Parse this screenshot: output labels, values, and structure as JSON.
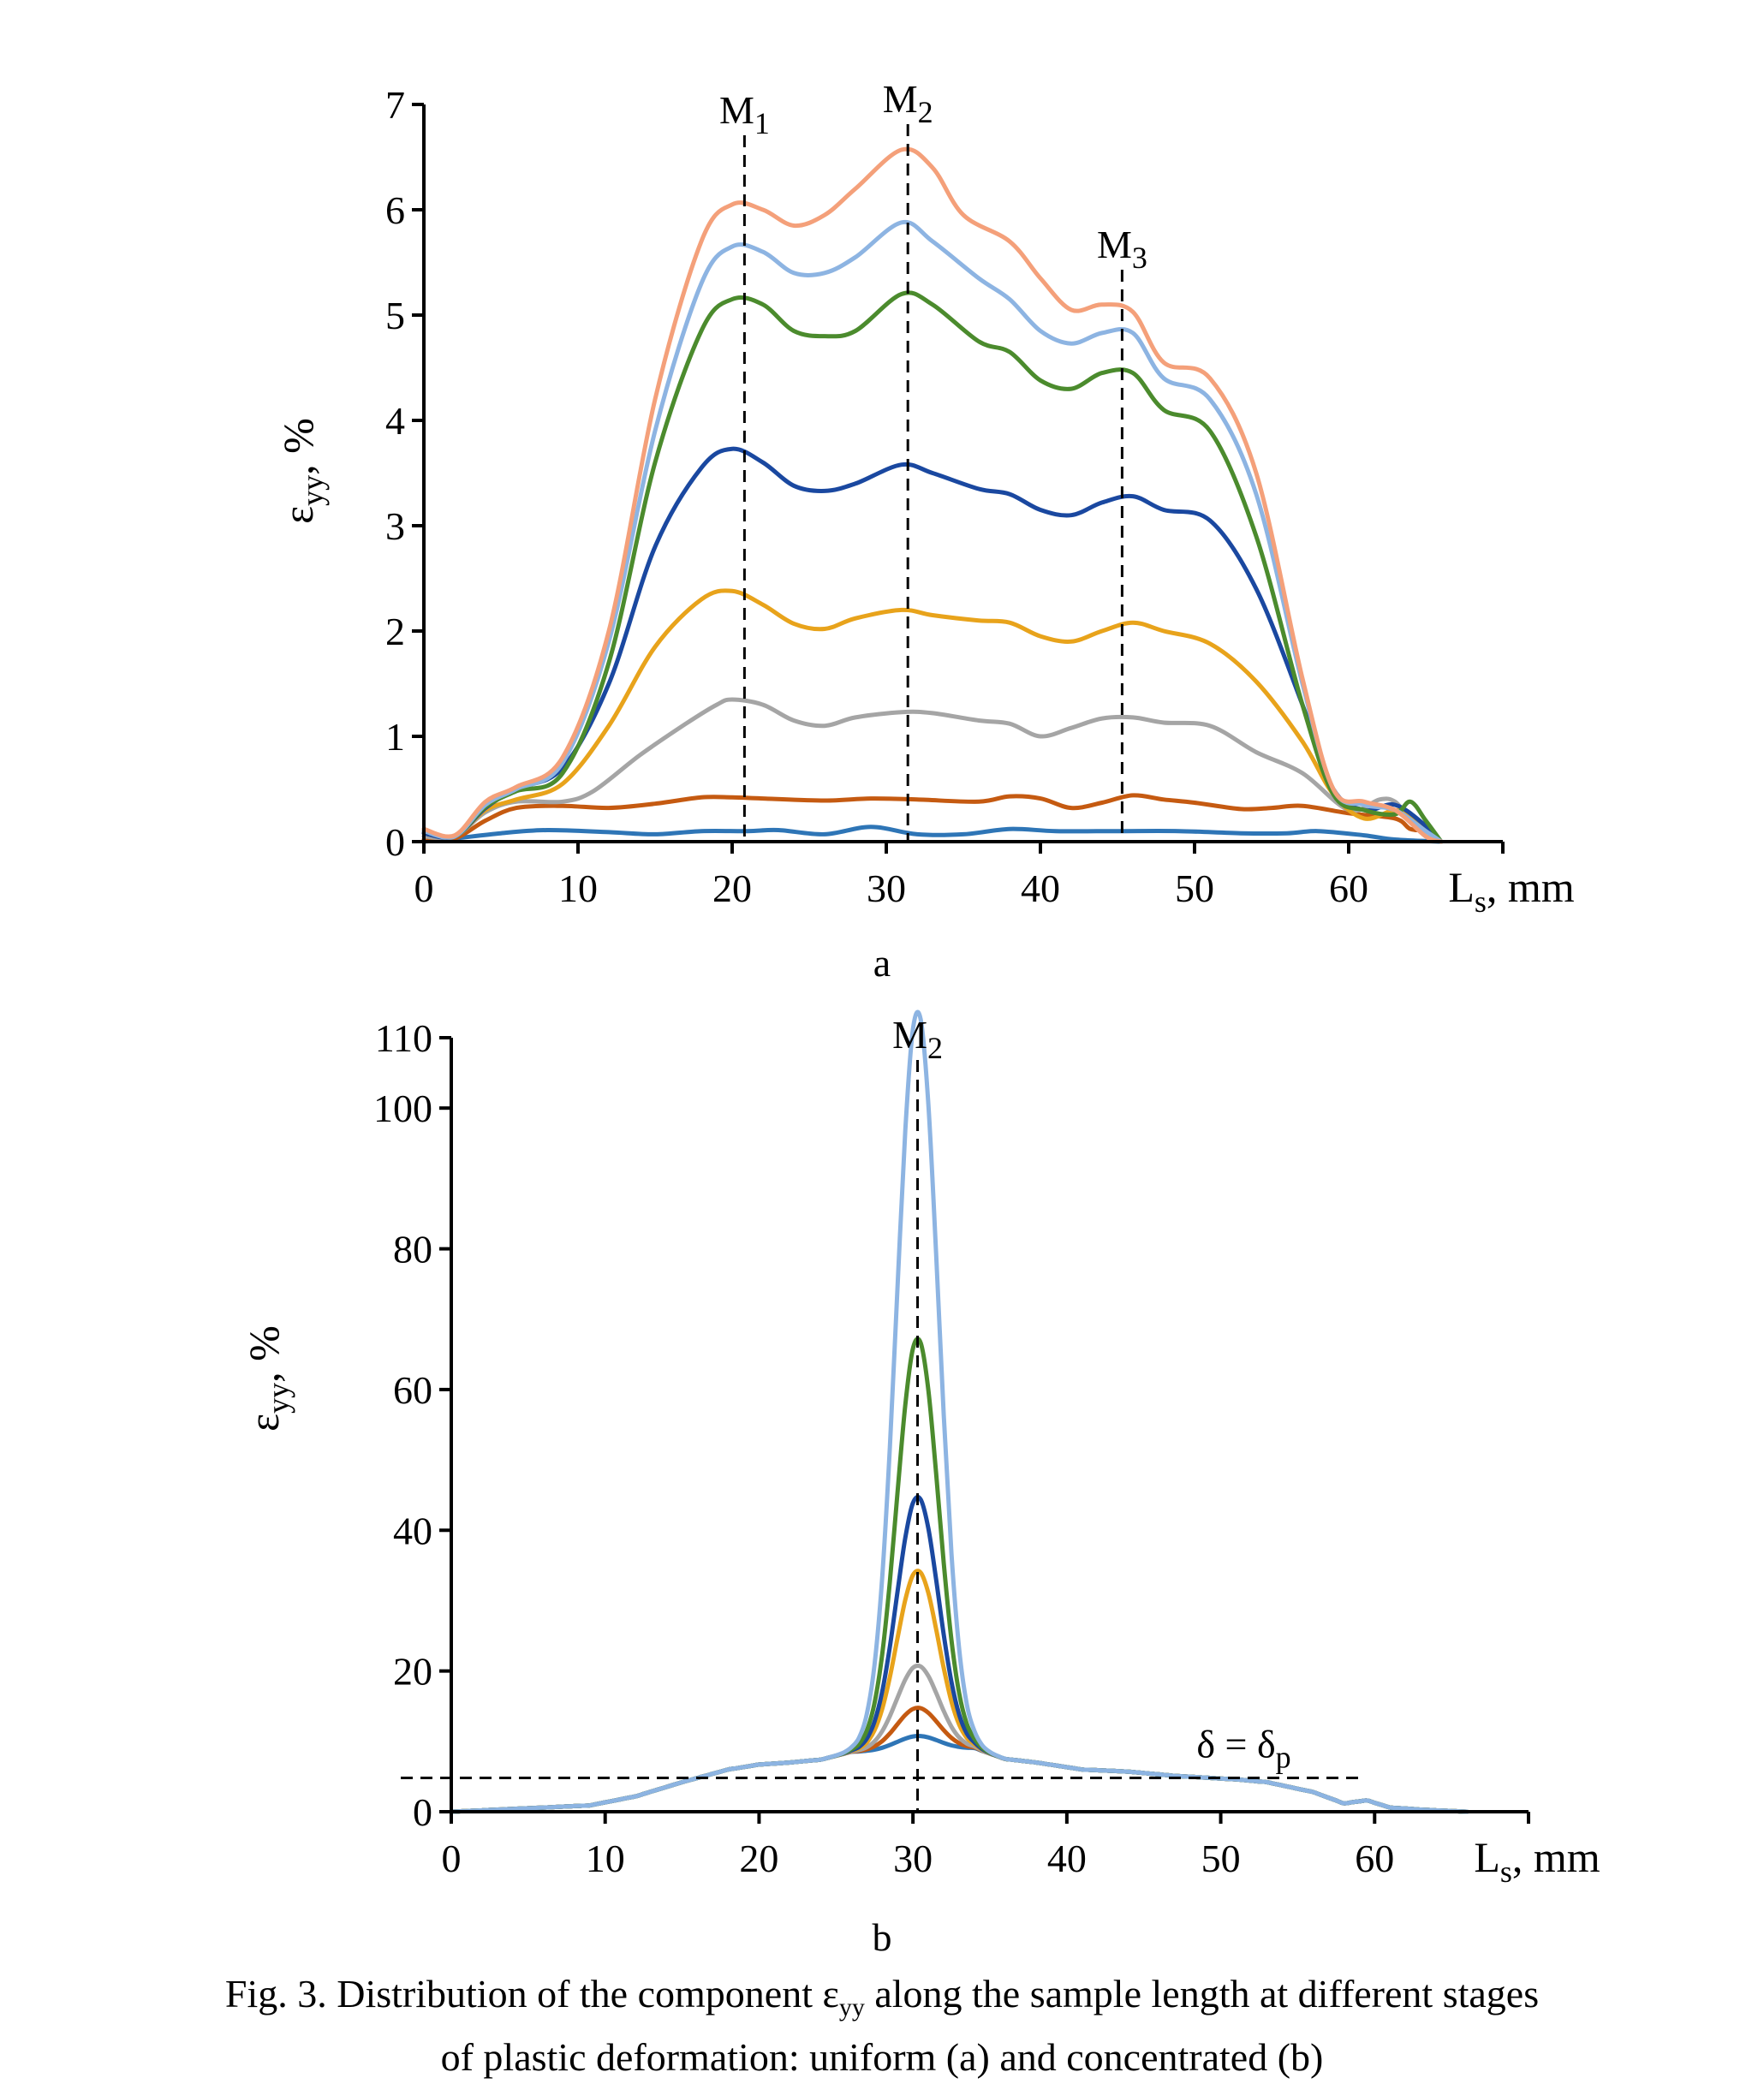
{
  "chart_data": [
    {
      "type": "line",
      "panel_label": "a",
      "ylabel": "εyy, %",
      "xlabel": "Ls, mm",
      "xlim": [
        0,
        70
      ],
      "ylim": [
        0,
        7
      ],
      "x_ticks": [
        "0",
        "10",
        "20",
        "30",
        "40",
        "50",
        "60"
      ],
      "y_ticks": [
        "0",
        "1",
        "2",
        "3",
        "4",
        "5",
        "6",
        "7"
      ],
      "markers": [
        {
          "label": "M1",
          "x": 20.8
        },
        {
          "label": "M2",
          "x": 31.4
        },
        {
          "label": "M3",
          "x": 45.3
        }
      ],
      "series": [
        {
          "color": "#2e75b6",
          "points": [
            [
              0,
              0
            ],
            [
              2,
              0.03
            ],
            [
              5,
              0.08
            ],
            [
              8,
              0.11
            ],
            [
              12,
              0.09
            ],
            [
              15,
              0.07
            ],
            [
              18,
              0.1
            ],
            [
              21,
              0.1
            ],
            [
              23,
              0.11
            ],
            [
              26,
              0.07
            ],
            [
              29,
              0.14
            ],
            [
              32,
              0.07
            ],
            [
              35,
              0.07
            ],
            [
              38,
              0.12
            ],
            [
              41,
              0.1
            ],
            [
              45,
              0.1
            ],
            [
              49,
              0.1
            ],
            [
              53,
              0.08
            ],
            [
              56,
              0.08
            ],
            [
              58,
              0.1
            ],
            [
              61,
              0.06
            ],
            [
              63,
              0.02
            ],
            [
              66,
              0
            ]
          ]
        },
        {
          "color": "#c55a11",
          "points": [
            [
              0,
              0.02
            ],
            [
              2,
              0.03
            ],
            [
              4,
              0.2
            ],
            [
              6,
              0.32
            ],
            [
              9,
              0.34
            ],
            [
              12,
              0.32
            ],
            [
              15,
              0.36
            ],
            [
              18,
              0.42
            ],
            [
              20,
              0.42
            ],
            [
              22,
              0.41
            ],
            [
              26,
              0.39
            ],
            [
              29,
              0.41
            ],
            [
              32,
              0.4
            ],
            [
              36,
              0.38
            ],
            [
              38,
              0.43
            ],
            [
              40,
              0.41
            ],
            [
              42,
              0.32
            ],
            [
              44,
              0.37
            ],
            [
              46,
              0.44
            ],
            [
              48,
              0.4
            ],
            [
              50,
              0.37
            ],
            [
              53,
              0.31
            ],
            [
              55,
              0.32
            ],
            [
              57,
              0.34
            ],
            [
              60,
              0.27
            ],
            [
              63,
              0.22
            ],
            [
              64,
              0.12
            ],
            [
              65,
              0.1
            ],
            [
              66,
              0
            ]
          ]
        },
        {
          "color": "#a5a5a5",
          "points": [
            [
              0,
              0.05
            ],
            [
              2,
              0.05
            ],
            [
              4,
              0.28
            ],
            [
              6,
              0.38
            ],
            [
              9,
              0.38
            ],
            [
              11,
              0.48
            ],
            [
              14,
              0.82
            ],
            [
              17,
              1.12
            ],
            [
              19,
              1.3
            ],
            [
              20,
              1.35
            ],
            [
              22,
              1.3
            ],
            [
              24,
              1.15
            ],
            [
              26,
              1.1
            ],
            [
              28,
              1.18
            ],
            [
              31,
              1.23
            ],
            [
              33,
              1.22
            ],
            [
              36,
              1.15
            ],
            [
              38,
              1.12
            ],
            [
              40,
              1.0
            ],
            [
              42,
              1.08
            ],
            [
              44,
              1.17
            ],
            [
              46,
              1.18
            ],
            [
              48,
              1.13
            ],
            [
              51,
              1.1
            ],
            [
              54,
              0.85
            ],
            [
              57,
              0.65
            ],
            [
              60,
              0.3
            ],
            [
              62,
              0.4
            ],
            [
              63,
              0.38
            ],
            [
              64,
              0.22
            ],
            [
              66,
              0
            ]
          ]
        },
        {
          "color": "#e8a31b",
          "points": [
            [
              0,
              0.08
            ],
            [
              2,
              0.05
            ],
            [
              4,
              0.3
            ],
            [
              6,
              0.4
            ],
            [
              9,
              0.55
            ],
            [
              12,
              1.1
            ],
            [
              15,
              1.85
            ],
            [
              18,
              2.3
            ],
            [
              20,
              2.38
            ],
            [
              22,
              2.25
            ],
            [
              24,
              2.07
            ],
            [
              26,
              2.02
            ],
            [
              28,
              2.12
            ],
            [
              31,
              2.2
            ],
            [
              33,
              2.15
            ],
            [
              36,
              2.1
            ],
            [
              38,
              2.08
            ],
            [
              40,
              1.95
            ],
            [
              42,
              1.9
            ],
            [
              44,
              2.0
            ],
            [
              46,
              2.08
            ],
            [
              48,
              2.0
            ],
            [
              51,
              1.88
            ],
            [
              54,
              1.52
            ],
            [
              57,
              0.95
            ],
            [
              59,
              0.45
            ],
            [
              61,
              0.22
            ],
            [
              63,
              0.3
            ],
            [
              64,
              0.22
            ],
            [
              65,
              0.1
            ],
            [
              66,
              0
            ]
          ]
        },
        {
          "color": "#1a48a0",
          "points": [
            [
              0,
              0.08
            ],
            [
              2,
              0.05
            ],
            [
              4,
              0.32
            ],
            [
              6,
              0.5
            ],
            [
              9,
              0.7
            ],
            [
              12,
              1.5
            ],
            [
              15,
              2.8
            ],
            [
              18,
              3.55
            ],
            [
              20,
              3.73
            ],
            [
              22,
              3.6
            ],
            [
              24,
              3.38
            ],
            [
              26,
              3.33
            ],
            [
              28,
              3.4
            ],
            [
              31,
              3.58
            ],
            [
              33,
              3.5
            ],
            [
              36,
              3.35
            ],
            [
              38,
              3.3
            ],
            [
              40,
              3.15
            ],
            [
              42,
              3.1
            ],
            [
              44,
              3.22
            ],
            [
              46,
              3.28
            ],
            [
              48,
              3.15
            ],
            [
              51,
              3.05
            ],
            [
              54,
              2.4
            ],
            [
              57,
              1.3
            ],
            [
              59,
              0.5
            ],
            [
              61,
              0.3
            ],
            [
              63,
              0.35
            ],
            [
              65,
              0.15
            ],
            [
              66,
              0
            ]
          ]
        },
        {
          "color": "#4b8b2d",
          "points": [
            [
              0,
              0.1
            ],
            [
              2,
              0.05
            ],
            [
              4,
              0.33
            ],
            [
              6,
              0.48
            ],
            [
              9,
              0.65
            ],
            [
              12,
              1.7
            ],
            [
              15,
              3.6
            ],
            [
              18,
              4.85
            ],
            [
              20,
              5.15
            ],
            [
              22,
              5.1
            ],
            [
              24,
              4.85
            ],
            [
              26,
              4.8
            ],
            [
              28,
              4.85
            ],
            [
              31,
              5.2
            ],
            [
              33,
              5.1
            ],
            [
              36,
              4.75
            ],
            [
              38,
              4.65
            ],
            [
              40,
              4.38
            ],
            [
              42,
              4.3
            ],
            [
              44,
              4.45
            ],
            [
              46,
              4.45
            ],
            [
              48,
              4.1
            ],
            [
              51,
              3.9
            ],
            [
              54,
              2.9
            ],
            [
              57,
              1.3
            ],
            [
              59,
              0.45
            ],
            [
              61,
              0.3
            ],
            [
              63,
              0.26
            ],
            [
              64,
              0.38
            ],
            [
              65,
              0.2
            ],
            [
              66,
              0
            ]
          ]
        },
        {
          "color": "#8db4e2",
          "points": [
            [
              0,
              0.1
            ],
            [
              2,
              0.05
            ],
            [
              4,
              0.35
            ],
            [
              6,
              0.5
            ],
            [
              9,
              0.75
            ],
            [
              12,
              1.9
            ],
            [
              15,
              3.9
            ],
            [
              18,
              5.3
            ],
            [
              20,
              5.65
            ],
            [
              22,
              5.6
            ],
            [
              24,
              5.4
            ],
            [
              26,
              5.4
            ],
            [
              28,
              5.55
            ],
            [
              31,
              5.88
            ],
            [
              33,
              5.7
            ],
            [
              36,
              5.35
            ],
            [
              38,
              5.15
            ],
            [
              40,
              4.85
            ],
            [
              42,
              4.73
            ],
            [
              44,
              4.83
            ],
            [
              46,
              4.83
            ],
            [
              48,
              4.4
            ],
            [
              51,
              4.2
            ],
            [
              54,
              3.3
            ],
            [
              57,
              1.5
            ],
            [
              59,
              0.5
            ],
            [
              61,
              0.35
            ],
            [
              63,
              0.3
            ],
            [
              65,
              0.1
            ],
            [
              66,
              0
            ]
          ]
        },
        {
          "color": "#f4a07a",
          "points": [
            [
              0,
              0.12
            ],
            [
              2,
              0.06
            ],
            [
              4,
              0.38
            ],
            [
              6,
              0.52
            ],
            [
              9,
              0.8
            ],
            [
              12,
              2.0
            ],
            [
              15,
              4.2
            ],
            [
              18,
              5.7
            ],
            [
              20,
              6.05
            ],
            [
              22,
              6.0
            ],
            [
              24,
              5.85
            ],
            [
              26,
              5.95
            ],
            [
              28,
              6.2
            ],
            [
              31,
              6.57
            ],
            [
              33,
              6.4
            ],
            [
              35,
              5.95
            ],
            [
              38,
              5.7
            ],
            [
              40,
              5.35
            ],
            [
              42,
              5.05
            ],
            [
              44,
              5.1
            ],
            [
              46,
              5.03
            ],
            [
              48,
              4.55
            ],
            [
              51,
              4.4
            ],
            [
              54,
              3.5
            ],
            [
              57,
              1.55
            ],
            [
              59,
              0.5
            ],
            [
              61,
              0.38
            ],
            [
              63,
              0.3
            ],
            [
              65,
              0.05
            ],
            [
              66,
              0
            ]
          ]
        }
      ]
    },
    {
      "type": "line",
      "panel_label": "b",
      "ylabel": "εyy, %",
      "xlabel": "Ls, mm",
      "xlim": [
        0,
        70
      ],
      "ylim": [
        0,
        110
      ],
      "x_ticks": [
        "0",
        "10",
        "20",
        "30",
        "40",
        "50",
        "60"
      ],
      "y_ticks": [
        "0",
        "20",
        "40",
        "60",
        "80",
        "100",
        "110"
      ],
      "markers": [
        {
          "label": "M2",
          "x": 30.3
        }
      ],
      "reference_line": {
        "label": "δ = δp",
        "y": 4.8,
        "x_from": 0,
        "x_to": 59.3
      },
      "series": [
        {
          "color": "#2e75b6",
          "peak": 11.0
        },
        {
          "color": "#c55a11",
          "peak": 15.0
        },
        {
          "color": "#a5a5a5",
          "peak": 21.0
        },
        {
          "color": "#e8a31b",
          "peak": 34.5
        },
        {
          "color": "#1a48a0",
          "peak": 45.0
        },
        {
          "color": "#4b8b2d",
          "peak": 67.5
        },
        {
          "color": "#8db4e2",
          "peak": 114.0
        }
      ],
      "base_profile": [
        [
          0,
          0
        ],
        [
          5,
          0.5
        ],
        [
          9,
          0.9
        ],
        [
          12,
          2.2
        ],
        [
          15,
          4.2
        ],
        [
          18,
          6.0
        ],
        [
          20,
          6.7
        ],
        [
          22,
          7.0
        ],
        [
          24,
          7.4
        ],
        [
          26,
          8.5
        ],
        [
          34,
          9.0
        ],
        [
          36,
          7.5
        ],
        [
          38,
          7.0
        ],
        [
          41,
          6.0
        ],
        [
          44,
          5.7
        ],
        [
          47,
          5.1
        ],
        [
          51,
          4.6
        ],
        [
          53,
          4.2
        ],
        [
          56,
          2.8
        ],
        [
          58,
          1.2
        ],
        [
          59.5,
          1.6
        ],
        [
          61,
          0.6
        ],
        [
          63,
          0.3
        ],
        [
          66,
          0
        ]
      ]
    }
  ],
  "caption": {
    "line1_prefix": "Fig. 3. Distribution of the component ε",
    "line1_sub": "yy",
    "line1_suffix": " along the sample length at different stages",
    "line2": "of plastic deformation: uniform (a) and concentrated (b)"
  }
}
